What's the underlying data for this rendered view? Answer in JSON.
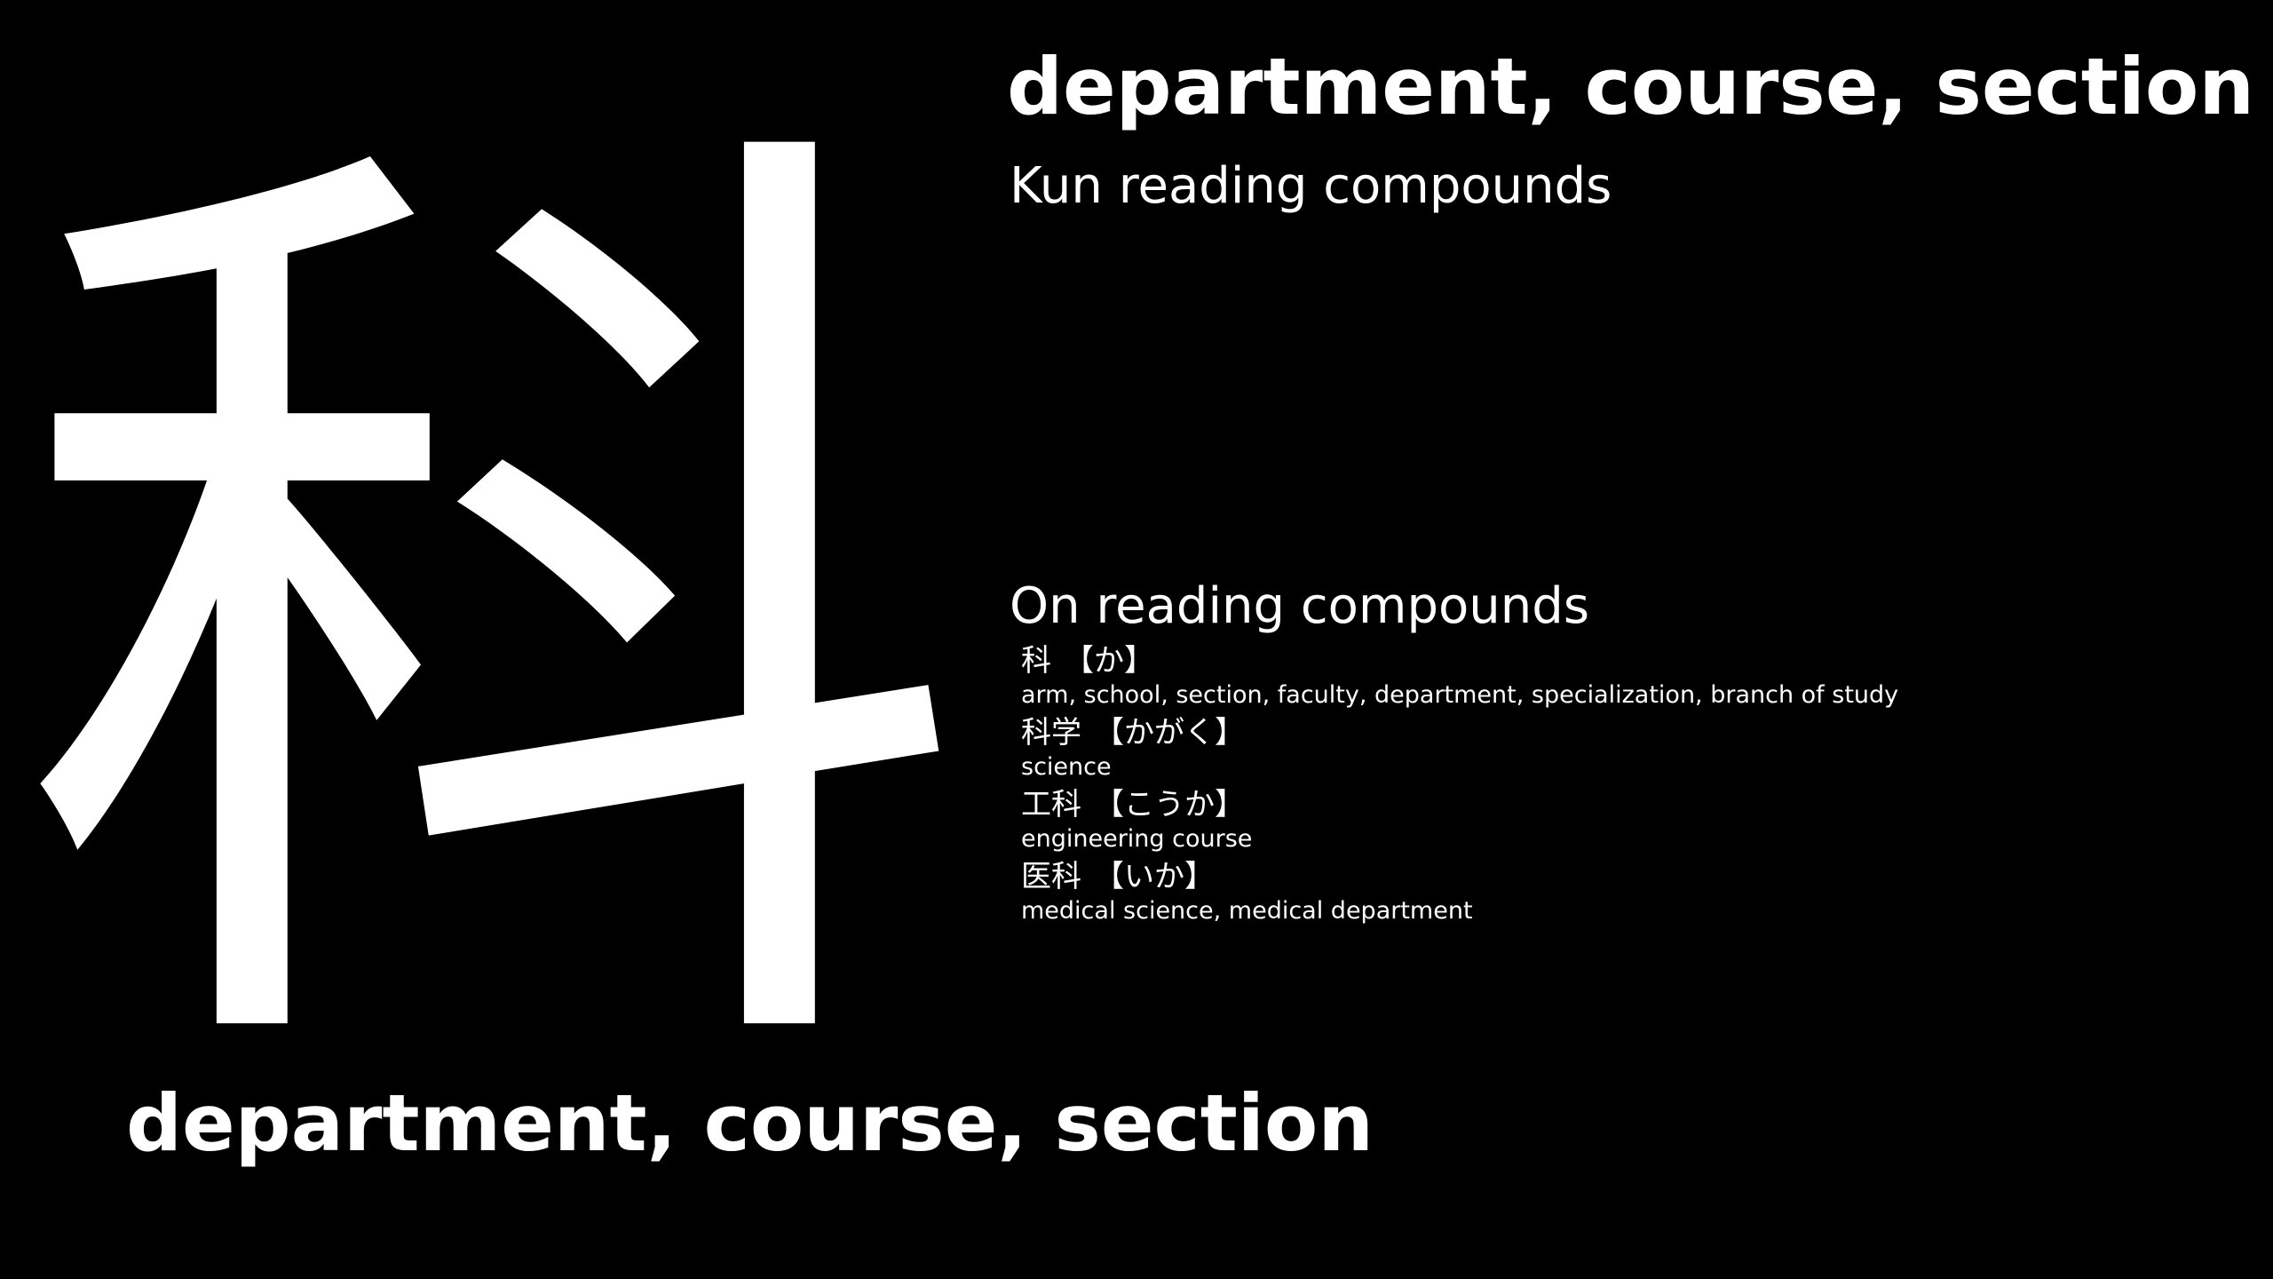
{
  "kanji": {
    "character": "科",
    "meaning": "department, course, section"
  },
  "header": {
    "title": "department, course, section"
  },
  "kun_section": {
    "heading": "Kun reading compounds",
    "items": []
  },
  "on_section": {
    "heading": "On reading compounds",
    "items": [
      {
        "word": "科",
        "reading": "【か】",
        "meaning": "arm, school, section, faculty, department, specialization, branch of study"
      },
      {
        "word": "科学",
        "reading": "【かがく】",
        "meaning": "science"
      },
      {
        "word": "工科",
        "reading": "【こうか】",
        "meaning": "engineering course"
      },
      {
        "word": "医科",
        "reading": "【いか】",
        "meaning": "medical science, medical department"
      }
    ]
  },
  "colors": {
    "background": "#000000",
    "text": "#ffffff"
  }
}
